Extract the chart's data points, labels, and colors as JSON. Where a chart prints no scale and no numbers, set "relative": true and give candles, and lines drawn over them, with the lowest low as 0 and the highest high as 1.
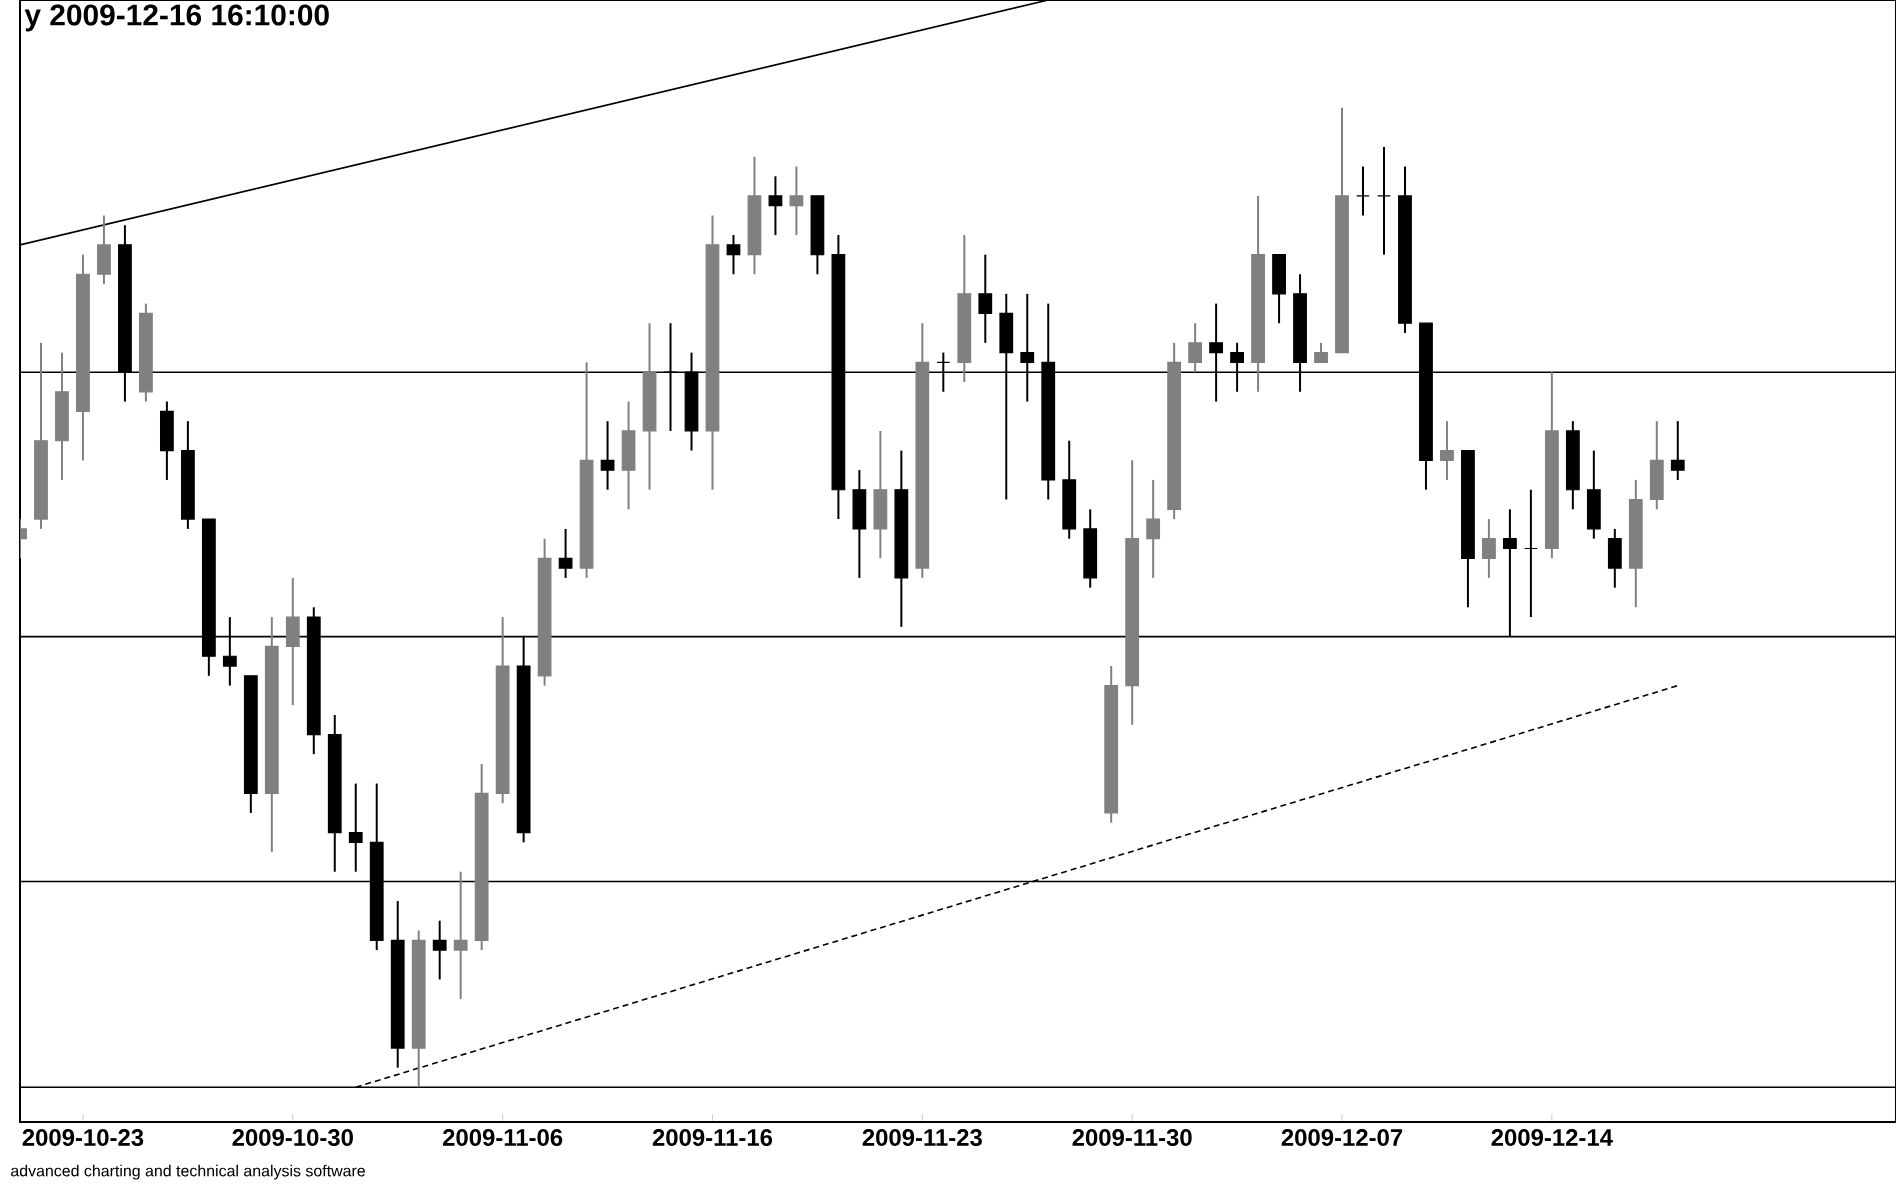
{
  "chart_data": {
    "type": "candlestick",
    "relative": true,
    "title": "y 2009-12-16 16:10:00",
    "annotations": [
      "advanced charting and technical analysis software"
    ],
    "categories": [
      null,
      null,
      null,
      "2009-10-23",
      null,
      null,
      null,
      null,
      null,
      null,
      null,
      null,
      null,
      "2009-10-30",
      null,
      null,
      null,
      null,
      null,
      null,
      null,
      null,
      null,
      "2009-11-06",
      null,
      null,
      null,
      null,
      null,
      null,
      null,
      null,
      null,
      "2009-11-16",
      null,
      null,
      null,
      null,
      null,
      null,
      null,
      null,
      null,
      "2009-11-23",
      null,
      null,
      null,
      null,
      null,
      null,
      null,
      null,
      null,
      "2009-11-30",
      null,
      null,
      null,
      null,
      null,
      null,
      null,
      null,
      null,
      "2009-12-07",
      null,
      null,
      null,
      null,
      null,
      null,
      null,
      null,
      null,
      "2009-12-14",
      null,
      null,
      null,
      null,
      null,
      null
    ],
    "ohlc": [
      [
        0.56,
        0.58,
        0.54,
        0.57
      ],
      [
        0.58,
        0.76,
        0.57,
        0.66
      ],
      [
        0.66,
        0.75,
        0.62,
        0.71
      ],
      [
        0.69,
        0.85,
        0.64,
        0.83
      ],
      [
        0.83,
        0.89,
        0.82,
        0.86
      ],
      [
        0.86,
        0.88,
        0.7,
        0.73
      ],
      [
        0.71,
        0.8,
        0.7,
        0.79
      ],
      [
        0.69,
        0.7,
        0.62,
        0.65
      ],
      [
        0.65,
        0.68,
        0.57,
        0.58
      ],
      [
        0.58,
        0.58,
        0.42,
        0.44
      ],
      [
        0.44,
        0.48,
        0.41,
        0.43
      ],
      [
        0.42,
        0.42,
        0.28,
        0.3
      ],
      [
        0.3,
        0.48,
        0.24,
        0.45
      ],
      [
        0.45,
        0.52,
        0.39,
        0.48
      ],
      [
        0.48,
        0.49,
        0.34,
        0.36
      ],
      [
        0.36,
        0.38,
        0.22,
        0.26
      ],
      [
        0.26,
        0.31,
        0.22,
        0.25
      ],
      [
        0.25,
        0.31,
        0.14,
        0.15
      ],
      [
        0.15,
        0.19,
        0.02,
        0.04
      ],
      [
        0.04,
        0.16,
        0,
        0.15
      ],
      [
        0.15,
        0.17,
        0.11,
        0.14
      ],
      [
        0.14,
        0.22,
        0.09,
        0.15
      ],
      [
        0.15,
        0.33,
        0.14,
        0.3
      ],
      [
        0.3,
        0.48,
        0.29,
        0.43
      ],
      [
        0.43,
        0.46,
        0.25,
        0.26
      ],
      [
        0.42,
        0.56,
        0.41,
        0.54
      ],
      [
        0.54,
        0.57,
        0.52,
        0.53
      ],
      [
        0.53,
        0.74,
        0.52,
        0.64
      ],
      [
        0.64,
        0.68,
        0.61,
        0.63
      ],
      [
        0.63,
        0.7,
        0.59,
        0.67
      ],
      [
        0.67,
        0.78,
        0.61,
        0.73
      ],
      [
        0.73,
        0.78,
        0.67,
        0.73
      ],
      [
        0.73,
        0.75,
        0.65,
        0.67
      ],
      [
        0.67,
        0.89,
        0.61,
        0.86
      ],
      [
        0.86,
        0.87,
        0.83,
        0.85
      ],
      [
        0.85,
        0.95,
        0.83,
        0.91
      ],
      [
        0.91,
        0.93,
        0.87,
        0.9
      ],
      [
        0.9,
        0.94,
        0.87,
        0.91
      ],
      [
        0.91,
        0.91,
        0.83,
        0.85
      ],
      [
        0.85,
        0.87,
        0.58,
        0.61
      ],
      [
        0.61,
        0.63,
        0.52,
        0.57
      ],
      [
        0.57,
        0.67,
        0.54,
        0.61
      ],
      [
        0.61,
        0.65,
        0.47,
        0.52
      ],
      [
        0.53,
        0.78,
        0.52,
        0.74
      ],
      [
        0.74,
        0.75,
        0.71,
        0.74
      ],
      [
        0.74,
        0.87,
        0.72,
        0.81
      ],
      [
        0.81,
        0.85,
        0.76,
        0.79
      ],
      [
        0.79,
        0.81,
        0.6,
        0.75
      ],
      [
        0.75,
        0.81,
        0.7,
        0.74
      ],
      [
        0.74,
        0.8,
        0.6,
        0.62
      ],
      [
        0.62,
        0.66,
        0.56,
        0.57
      ],
      [
        0.57,
        0.59,
        0.51,
        0.52
      ],
      [
        0.28,
        0.43,
        0.27,
        0.41
      ],
      [
        0.41,
        0.64,
        0.37,
        0.56
      ],
      [
        0.56,
        0.62,
        0.52,
        0.58
      ],
      [
        0.59,
        0.76,
        0.58,
        0.74
      ],
      [
        0.74,
        0.78,
        0.73,
        0.76
      ],
      [
        0.76,
        0.8,
        0.7,
        0.75
      ],
      [
        0.75,
        0.76,
        0.71,
        0.74
      ],
      [
        0.74,
        0.91,
        0.71,
        0.85
      ],
      [
        0.85,
        0.85,
        0.78,
        0.81
      ],
      [
        0.81,
        0.83,
        0.71,
        0.74
      ],
      [
        0.74,
        0.76,
        0.74,
        0.75
      ],
      [
        0.75,
        1,
        0.75,
        0.91
      ],
      [
        0.91,
        0.94,
        0.89,
        0.91
      ],
      [
        0.91,
        0.96,
        0.85,
        0.91
      ],
      [
        0.91,
        0.94,
        0.77,
        0.78
      ],
      [
        0.78,
        0.78,
        0.61,
        0.64
      ],
      [
        0.64,
        0.68,
        0.62,
        0.65
      ],
      [
        0.65,
        0.65,
        0.49,
        0.54
      ],
      [
        0.54,
        0.58,
        0.52,
        0.56
      ],
      [
        0.56,
        0.59,
        0.46,
        0.55
      ],
      [
        0.55,
        0.61,
        0.48,
        0.55
      ],
      [
        0.55,
        0.73,
        0.54,
        0.67
      ],
      [
        0.67,
        0.68,
        0.59,
        0.61
      ],
      [
        0.61,
        0.65,
        0.56,
        0.57
      ],
      [
        0.56,
        0.57,
        0.51,
        0.53
      ],
      [
        0.53,
        0.62,
        0.49,
        0.6
      ],
      [
        0.6,
        0.68,
        0.59,
        0.64
      ],
      [
        0.64,
        0.68,
        0.62,
        0.63
      ]
    ],
    "series": [
      {
        "type": "line",
        "color": "#000000",
        "line_style": "solid",
        "values": [
          0.86,
          null,
          null,
          null,
          null,
          null,
          null,
          null,
          null,
          null,
          null,
          null,
          null,
          null,
          null,
          null,
          null,
          null,
          null,
          null,
          null,
          null,
          null,
          null,
          null,
          null,
          null,
          null,
          null,
          null,
          null,
          null,
          null,
          null,
          null,
          null,
          null,
          null,
          null,
          null,
          null,
          null,
          null,
          null,
          null,
          null,
          null,
          null,
          null,
          1.11,
          null,
          null,
          null,
          null,
          null,
          null,
          null,
          null,
          null,
          null,
          null,
          null,
          null,
          null,
          null,
          null,
          null,
          null,
          null,
          null,
          null,
          null,
          null,
          null,
          null,
          null,
          null,
          null,
          null,
          null
        ]
      },
      {
        "type": "line",
        "color": "#000000",
        "line_style": "dotted",
        "values": [
          null,
          null,
          null,
          null,
          null,
          null,
          null,
          null,
          null,
          null,
          null,
          null,
          null,
          null,
          null,
          null,
          0.0,
          null,
          null,
          null,
          null,
          null,
          null,
          null,
          null,
          null,
          null,
          null,
          null,
          null,
          null,
          null,
          null,
          null,
          null,
          null,
          null,
          null,
          null,
          null,
          null,
          null,
          null,
          null,
          null,
          null,
          null,
          null,
          null,
          null,
          null,
          null,
          null,
          null,
          null,
          null,
          null,
          null,
          null,
          null,
          null,
          null,
          null,
          null,
          null,
          null,
          null,
          null,
          null,
          null,
          null,
          null,
          null,
          null,
          null,
          null,
          null,
          null,
          null,
          0.41
        ]
      }
    ],
    "ref_lines": [
      {
        "axis": "y",
        "value": 0.73
      },
      {
        "axis": "y",
        "value": 0.46
      },
      {
        "axis": "y",
        "value": 0.21
      },
      {
        "axis": "y",
        "value": 0
      }
    ],
    "colors": [
      "#808080",
      "#808080",
      "#808080",
      "#808080",
      "#808080",
      "#000000",
      "#808080",
      "#000000",
      "#000000",
      "#000000",
      "#000000",
      "#000000",
      "#808080",
      "#808080",
      "#000000",
      "#000000",
      "#000000",
      "#000000",
      "#000000",
      "#808080",
      "#000000",
      "#808080",
      "#808080",
      "#808080",
      "#000000",
      "#808080",
      "#000000",
      "#808080",
      "#000000",
      "#808080",
      "#808080",
      "#000000",
      "#000000",
      "#808080",
      "#000000",
      "#808080",
      "#000000",
      "#808080",
      "#000000",
      "#000000",
      "#000000",
      "#808080",
      "#000000",
      "#808080",
      "#000000",
      "#808080",
      "#000000",
      "#000000",
      "#000000",
      "#000000",
      "#000000",
      "#000000",
      "#808080",
      "#808080",
      "#808080",
      "#808080",
      "#808080",
      "#000000",
      "#000000",
      "#808080",
      "#000000",
      "#000000",
      "#808080",
      "#808080",
      "#000000",
      "#000000",
      "#000000",
      "#000000",
      "#808080",
      "#000000",
      "#808080",
      "#000000",
      "#000000",
      "#808080",
      "#000000",
      "#000000",
      "#000000",
      "#808080",
      "#808080",
      "#000000"
    ]
  }
}
